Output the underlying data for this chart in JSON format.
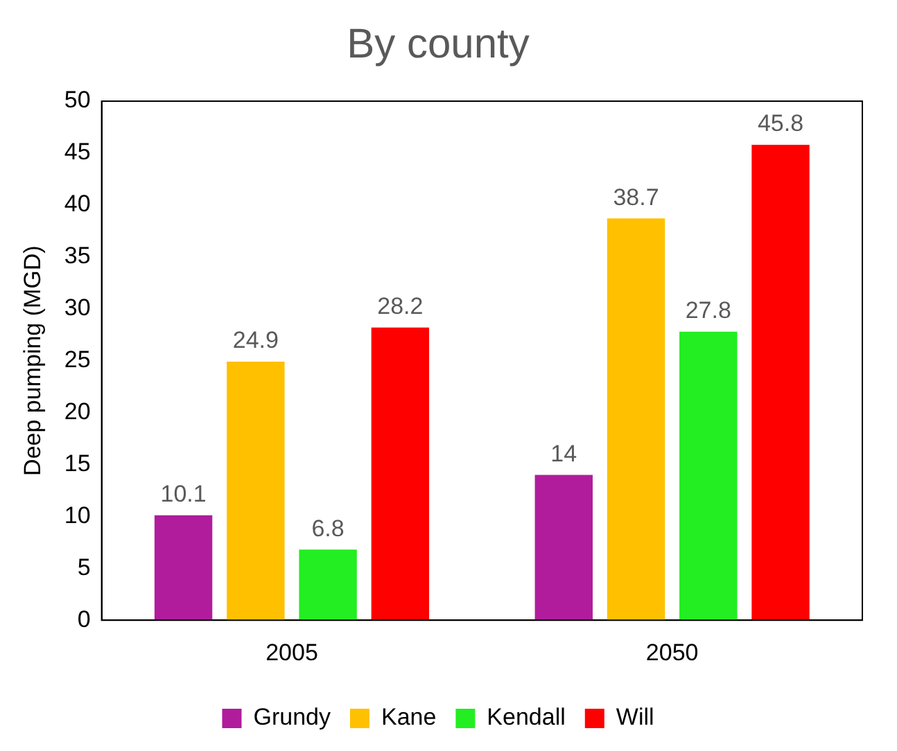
{
  "chart_data": {
    "type": "bar",
    "title": "By county",
    "ylabel": "Deep pumping (MGD)",
    "categories": [
      "2005",
      "2050"
    ],
    "series": [
      {
        "name": "Grundy",
        "color": "#b01c9c",
        "values": [
          10.1,
          14
        ]
      },
      {
        "name": "Kane",
        "color": "#ffc000",
        "values": [
          24.9,
          38.7
        ]
      },
      {
        "name": "Kendall",
        "color": "#22ee22",
        "values": [
          6.8,
          27.8
        ]
      },
      {
        "name": "Will",
        "color": "#ff0000",
        "values": [
          28.2,
          45.8
        ]
      }
    ],
    "ylim": [
      0,
      50
    ],
    "yticks": [
      0,
      5,
      10,
      15,
      20,
      25,
      30,
      35,
      40,
      45,
      50
    ],
    "grid": false,
    "legend": "bottom",
    "data_labels": true
  }
}
